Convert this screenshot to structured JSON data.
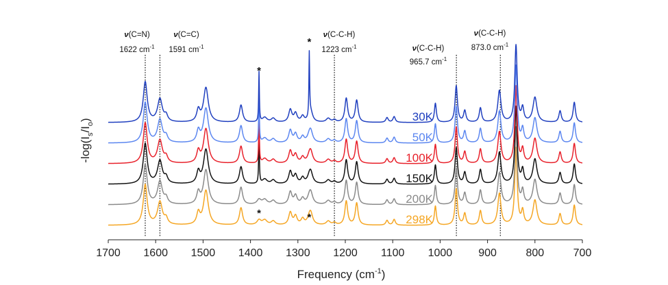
{
  "chart_data": {
    "type": "line",
    "title": "",
    "xlabel": "Frequency (cm",
    "xlabel_sup": "-1",
    "xlabel_end": ")",
    "ylabel": "-log(I",
    "ylabel_sub_s": "s",
    "ylabel_mid": "/I",
    "ylabel_sub_o": "o",
    "ylabel_end": ")",
    "xlim": [
      1700,
      700
    ],
    "x_reversed": true,
    "xticks": [
      "1700",
      "1600",
      "1500",
      "1400",
      "1300",
      "1200",
      "1100",
      "1000",
      "900",
      "800",
      "700"
    ],
    "grid": false,
    "legend": "inline labels at right of traces",
    "series": [
      {
        "name": "30K",
        "color": "#1f3fbf",
        "offset": 5
      },
      {
        "name": "50K",
        "color": "#5b86f0",
        "offset": 4
      },
      {
        "name": "100K",
        "color": "#e8202a",
        "offset": 3
      },
      {
        "name": "150K",
        "color": "#111111",
        "offset": 2
      },
      {
        "name": "200K",
        "color": "#8a8a8a",
        "offset": 1
      },
      {
        "name": "298K",
        "color": "#f5a623",
        "offset": 0
      }
    ],
    "peaks": [
      {
        "x": 1622,
        "h": 2.1,
        "w": 5
      },
      {
        "x": 1591,
        "h": 1.2,
        "w": 6
      },
      {
        "x": 1578,
        "h": 0.3,
        "w": 4
      },
      {
        "x": 1510,
        "h": 0.6,
        "w": 4
      },
      {
        "x": 1494,
        "h": 1.8,
        "w": 6
      },
      {
        "x": 1420,
        "h": 0.9,
        "w": 4
      },
      {
        "x": 1370,
        "h": 0.25,
        "w": 6
      },
      {
        "x": 1352,
        "h": 0.2,
        "w": 5
      },
      {
        "x": 1316,
        "h": 0.65,
        "w": 4
      },
      {
        "x": 1305,
        "h": 0.45,
        "w": 4
      },
      {
        "x": 1290,
        "h": 0.3,
        "w": 4
      },
      {
        "x": 1273,
        "h": 0.55,
        "w": 5
      },
      {
        "x": 1236,
        "h": 0.2,
        "w": 5
      },
      {
        "x": 1223,
        "h": 0.12,
        "w": 4
      },
      {
        "x": 1198,
        "h": 1.25,
        "w": 3.5
      },
      {
        "x": 1176,
        "h": 1.15,
        "w": 3.5
      },
      {
        "x": 1112,
        "h": 0.25,
        "w": 3
      },
      {
        "x": 1097,
        "h": 0.3,
        "w": 3
      },
      {
        "x": 1010,
        "h": 1.0,
        "w": 2.5
      },
      {
        "x": 966,
        "h": 1.9,
        "w": 3
      },
      {
        "x": 948,
        "h": 0.6,
        "w": 3
      },
      {
        "x": 915,
        "h": 0.75,
        "w": 3
      },
      {
        "x": 875,
        "h": 1.65,
        "w": 4
      },
      {
        "x": 840,
        "h": 4.0,
        "w": 3
      },
      {
        "x": 826,
        "h": 0.7,
        "w": 3
      },
      {
        "x": 800,
        "h": 1.3,
        "w": 5
      },
      {
        "x": 747,
        "h": 0.6,
        "w": 3
      },
      {
        "x": 717,
        "h": 1.05,
        "w": 3
      }
    ],
    "spikes": [
      {
        "x": 1382,
        "h": 2.6,
        "series": [
          0,
          1,
          2,
          3
        ]
      },
      {
        "x": 1276,
        "h": 3.3,
        "series": [
          0
        ]
      }
    ],
    "reference_lines": [
      1622,
      1591,
      1223,
      965.7,
      873.0
    ],
    "annotations": [
      {
        "mode": "ν",
        "group": "(C=N)",
        "value": "1622 cm",
        "sup": "-1",
        "x": 1622
      },
      {
        "mode": "ν",
        "group": "(C=C)",
        "value": "1591 cm",
        "sup": "-1",
        "x": 1591
      },
      {
        "mode": "ν",
        "group": "(C-C-H)",
        "value": "1223 cm",
        "sup": "-1",
        "x": 1223
      },
      {
        "mode": "ν",
        "group": "(C-C-H)",
        "value": "965.7 cm",
        "sup": "-1",
        "x": 965.7
      },
      {
        "mode": "ν",
        "group": "(C-C-H)",
        "value": "873.0 cm",
        "sup": "-1",
        "x": 873.0
      }
    ],
    "asterisk_marks": [
      {
        "x": 1382,
        "where": "top"
      },
      {
        "x": 1276,
        "where": "top"
      },
      {
        "x": 1382,
        "where": "bottom"
      },
      {
        "x": 1276,
        "where": "bottom"
      }
    ],
    "asterisk_text": "*"
  }
}
